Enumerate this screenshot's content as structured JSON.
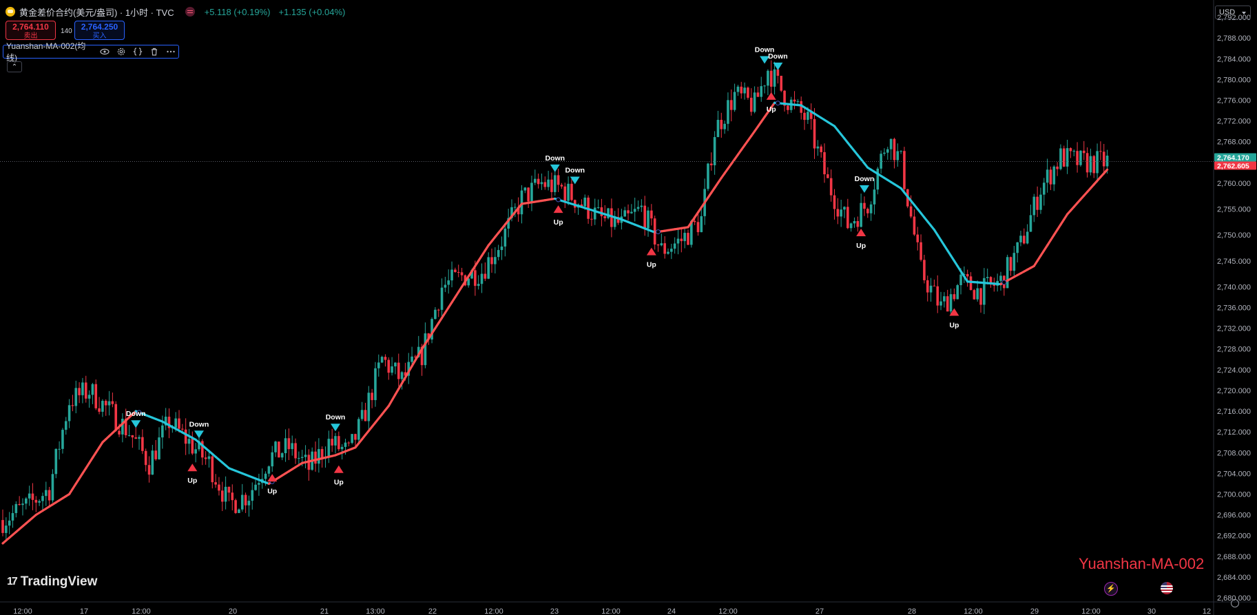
{
  "header": {
    "symbol_title": "黄金差价合约(美元/盎司) · 1小时 · TVC",
    "change_1": "+5.118 (+0.19%)",
    "change_2": "+1.135 (+0.04%)",
    "icon": "gold-coin-icon"
  },
  "quotes": {
    "sell_price": "2,764.110",
    "sell_label": "卖出",
    "spread": "140",
    "buy_price": "2,764.250",
    "buy_label": "买入"
  },
  "indicator": {
    "name": "Yuanshan-MA-002(均线)",
    "buttons": [
      "eye-icon",
      "settings-icon",
      "source-code-icon",
      "delete-icon",
      "more-icon"
    ]
  },
  "currency": "USD",
  "watermark": "Yuanshan-MA-002",
  "logo_text": "TradingView",
  "price_labels": {
    "last_close": "2,764.170",
    "ma_value": "2,762.605"
  },
  "colors": {
    "up": "#26a69a",
    "down": "#f23645",
    "ma_up": "#ff5252",
    "ma_down": "#26c6da",
    "background": "#000000"
  },
  "chart_data": {
    "type": "candlestick",
    "ylim": [
      2680,
      2794
    ],
    "yticks": [
      "2,792.000",
      "2,788.000",
      "2,784.000",
      "2,780.000",
      "2,776.000",
      "2,772.000",
      "2,768.000",
      "2,764.000",
      "2,760.000",
      "2,755.000",
      "2,750.000",
      "2,745.000",
      "2,740.000",
      "2,736.000",
      "2,732.000",
      "2,728.000",
      "2,724.000",
      "2,720.000",
      "2,716.000",
      "2,712.000",
      "2,708.000",
      "2,704.000",
      "2,700.000",
      "2,696.000",
      "2,692.000",
      "2,688.000",
      "2,684.000",
      "2,680.000"
    ],
    "xticks": [
      "12:00",
      "17",
      "12:00",
      "20",
      "21",
      "13:00",
      "22",
      "12:00",
      "23",
      "12:00",
      "24",
      "12:00",
      "27",
      "28",
      "12:00",
      "29",
      "12:00",
      "30",
      "12"
    ],
    "close_anchors": [
      [
        0,
        2695
      ],
      [
        8,
        2698
      ],
      [
        14,
        2701
      ],
      [
        20,
        2718
      ],
      [
        26,
        2720
      ],
      [
        32,
        2716
      ],
      [
        38,
        2712
      ],
      [
        44,
        2706
      ],
      [
        50,
        2714
      ],
      [
        56,
        2710
      ],
      [
        62,
        2706
      ],
      [
        68,
        2698
      ],
      [
        74,
        2700
      ],
      [
        80,
        2707
      ],
      [
        86,
        2709
      ],
      [
        92,
        2705
      ],
      [
        98,
        2710
      ],
      [
        104,
        2708
      ],
      [
        108,
        2714
      ],
      [
        114,
        2726
      ],
      [
        120,
        2722
      ],
      [
        126,
        2727
      ],
      [
        132,
        2740
      ],
      [
        138,
        2742
      ],
      [
        144,
        2743
      ],
      [
        150,
        2749
      ],
      [
        156,
        2757
      ],
      [
        162,
        2760
      ],
      [
        168,
        2759
      ],
      [
        174,
        2756
      ],
      [
        180,
        2753
      ],
      [
        186,
        2752
      ],
      [
        192,
        2755
      ],
      [
        198,
        2747
      ],
      [
        204,
        2749
      ],
      [
        210,
        2753
      ],
      [
        214,
        2770
      ],
      [
        220,
        2777
      ],
      [
        226,
        2775
      ],
      [
        230,
        2782
      ],
      [
        236,
        2776
      ],
      [
        242,
        2772
      ],
      [
        248,
        2760
      ],
      [
        254,
        2752
      ],
      [
        260,
        2756
      ],
      [
        266,
        2769
      ],
      [
        270,
        2764
      ],
      [
        276,
        2743
      ],
      [
        282,
        2736
      ],
      [
        288,
        2741
      ],
      [
        294,
        2739
      ],
      [
        300,
        2741
      ],
      [
        306,
        2748
      ],
      [
        312,
        2759
      ],
      [
        318,
        2765
      ],
      [
        324,
        2764
      ],
      [
        330,
        2764
      ],
      [
        332,
        2764.17
      ]
    ],
    "ma_anchors": [
      [
        0,
        2690.5
      ],
      [
        10,
        2696
      ],
      [
        20,
        2700
      ],
      [
        30,
        2710
      ],
      [
        40,
        2716
      ],
      [
        48,
        2714
      ],
      [
        58,
        2710.5
      ],
      [
        68,
        2705
      ],
      [
        80,
        2702
      ],
      [
        90,
        2706
      ],
      [
        100,
        2707.5
      ],
      [
        106,
        2709
      ],
      [
        116,
        2717
      ],
      [
        126,
        2728
      ],
      [
        136,
        2738
      ],
      [
        146,
        2748
      ],
      [
        156,
        2756
      ],
      [
        166,
        2757
      ],
      [
        176,
        2755
      ],
      [
        186,
        2753
      ],
      [
        196,
        2750.5
      ],
      [
        206,
        2751.5
      ],
      [
        216,
        2761
      ],
      [
        226,
        2770
      ],
      [
        232,
        2775.5
      ],
      [
        240,
        2775
      ],
      [
        250,
        2771
      ],
      [
        260,
        2763
      ],
      [
        270,
        2759
      ],
      [
        280,
        2751
      ],
      [
        290,
        2741
      ],
      [
        300,
        2740.5
      ],
      [
        310,
        2744
      ],
      [
        320,
        2754
      ],
      [
        332,
        2762.605
      ]
    ],
    "signals": [
      {
        "label": "Down",
        "bar": 40,
        "type": "down"
      },
      {
        "label": "Down",
        "bar": 59,
        "type": "down"
      },
      {
        "label": "Up",
        "bar": 57,
        "type": "up"
      },
      {
        "label": "Up",
        "bar": 81,
        "type": "up"
      },
      {
        "label": "Down",
        "bar": 100,
        "type": "down"
      },
      {
        "label": "Up",
        "bar": 101,
        "type": "up"
      },
      {
        "label": "Down",
        "bar": 166,
        "type": "down"
      },
      {
        "label": "Down",
        "bar": 172,
        "type": "down"
      },
      {
        "label": "Up",
        "bar": 167,
        "type": "up"
      },
      {
        "label": "Up",
        "bar": 195,
        "type": "up"
      },
      {
        "label": "Down",
        "bar": 229,
        "type": "down"
      },
      {
        "label": "Down",
        "bar": 233,
        "type": "down"
      },
      {
        "label": "Up",
        "bar": 231,
        "type": "up"
      },
      {
        "label": "Down",
        "bar": 259,
        "type": "down"
      },
      {
        "label": "Up",
        "bar": 258,
        "type": "up"
      },
      {
        "label": "Up",
        "bar": 286,
        "type": "up"
      }
    ]
  }
}
